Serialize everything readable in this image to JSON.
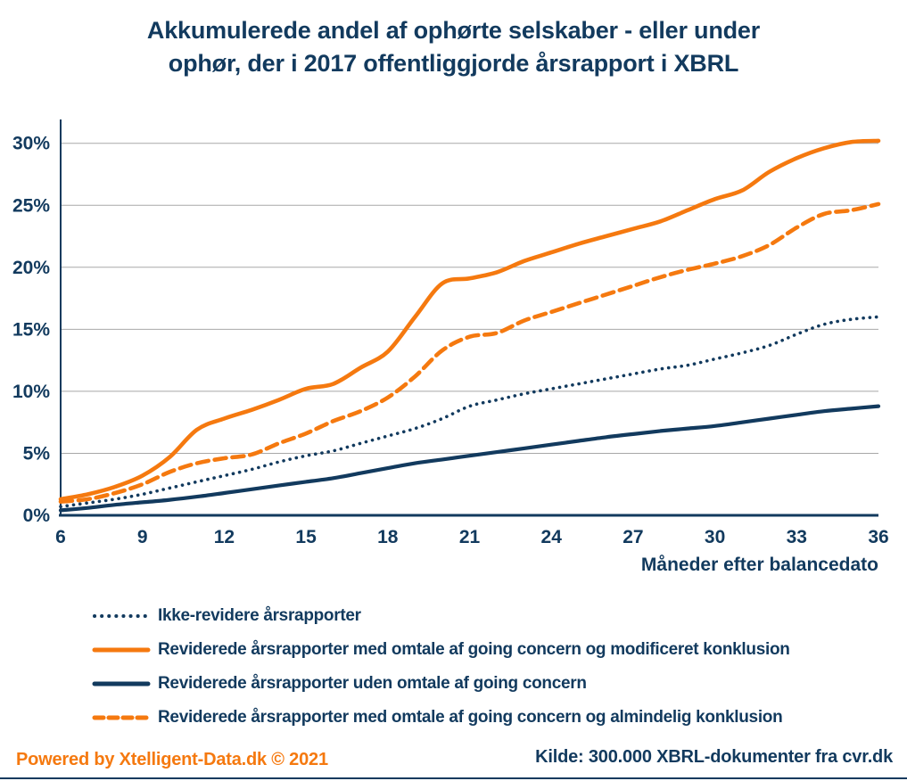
{
  "title": {
    "line1": "Akkumulerede andel af ophørte selskaber - eller under",
    "line2": "ophør, der i 2017 offentliggjorde årsrapport i XBRL"
  },
  "colors": {
    "navy": "#123a5e",
    "orange": "#f5790f",
    "grid": "#a8a8a8"
  },
  "chart_data": {
    "type": "line",
    "x_start": 6,
    "x_end": 36,
    "x_step": 1,
    "xticks": [
      6,
      9,
      12,
      15,
      18,
      21,
      24,
      27,
      30,
      33,
      36
    ],
    "yticks": [
      {
        "v": 0,
        "label": "0%"
      },
      {
        "v": 5,
        "label": "5%"
      },
      {
        "v": 10,
        "label": "10%"
      },
      {
        "v": 15,
        "label": "15%"
      },
      {
        "v": 20,
        "label": "20%"
      },
      {
        "v": 25,
        "label": "25%"
      },
      {
        "v": 30,
        "label": "30%"
      }
    ],
    "ylim": [
      0,
      31.8
    ],
    "xlabel": "Måneder efter balancedato",
    "grid": "horizontal",
    "legend_position": "bottom-left",
    "series": [
      {
        "name": "Ikke-revidere årsrapporter",
        "color": "#123a5e",
        "dash": "dotted",
        "values": [
          0.7,
          1.0,
          1.3,
          1.7,
          2.2,
          2.7,
          3.2,
          3.7,
          4.3,
          4.8,
          5.2,
          5.8,
          6.4,
          7.0,
          7.8,
          8.8,
          9.3,
          9.8,
          10.2,
          10.6,
          11.0,
          11.4,
          11.8,
          12.1,
          12.6,
          13.1,
          13.7,
          14.6,
          15.4,
          15.8,
          16.0
        ]
      },
      {
        "name": "Reviderede årsrapporter med omtale af going concern og modificeret konklusion",
        "color": "#f5790f",
        "dash": "solid",
        "values": [
          1.3,
          1.7,
          2.3,
          3.2,
          4.7,
          6.9,
          7.8,
          8.5,
          9.3,
          10.2,
          10.6,
          11.9,
          13.2,
          16.0,
          18.7,
          19.1,
          19.6,
          20.5,
          21.2,
          21.9,
          22.5,
          23.1,
          23.7,
          24.6,
          25.5,
          26.2,
          27.7,
          28.8,
          29.6,
          30.1,
          30.2
        ]
      },
      {
        "name": "Reviderede årsrapporter uden omtale af going concern",
        "color": "#123a5e",
        "dash": "solid",
        "values": [
          0.4,
          0.6,
          0.85,
          1.05,
          1.25,
          1.5,
          1.8,
          2.1,
          2.4,
          2.7,
          3.0,
          3.4,
          3.8,
          4.2,
          4.5,
          4.8,
          5.1,
          5.4,
          5.7,
          6.0,
          6.3,
          6.55,
          6.8,
          7.0,
          7.2,
          7.5,
          7.8,
          8.1,
          8.4,
          8.6,
          8.8
        ]
      },
      {
        "name": "Reviderede årsrapporter med omtale af going concern og almindelig konklusion",
        "color": "#f5790f",
        "dash": "dashed",
        "values": [
          1.1,
          1.3,
          1.8,
          2.5,
          3.5,
          4.2,
          4.6,
          4.9,
          5.8,
          6.6,
          7.6,
          8.4,
          9.5,
          11.2,
          13.3,
          14.4,
          14.7,
          15.7,
          16.4,
          17.1,
          17.8,
          18.5,
          19.2,
          19.8,
          20.3,
          20.9,
          21.8,
          23.2,
          24.3,
          24.6,
          25.1
        ]
      }
    ]
  },
  "footer": {
    "powered_by": "Powered by Xtelligent-Data.dk © 2021",
    "source": "Kilde: 300.000 XBRL-dokumenter fra cvr.dk"
  }
}
